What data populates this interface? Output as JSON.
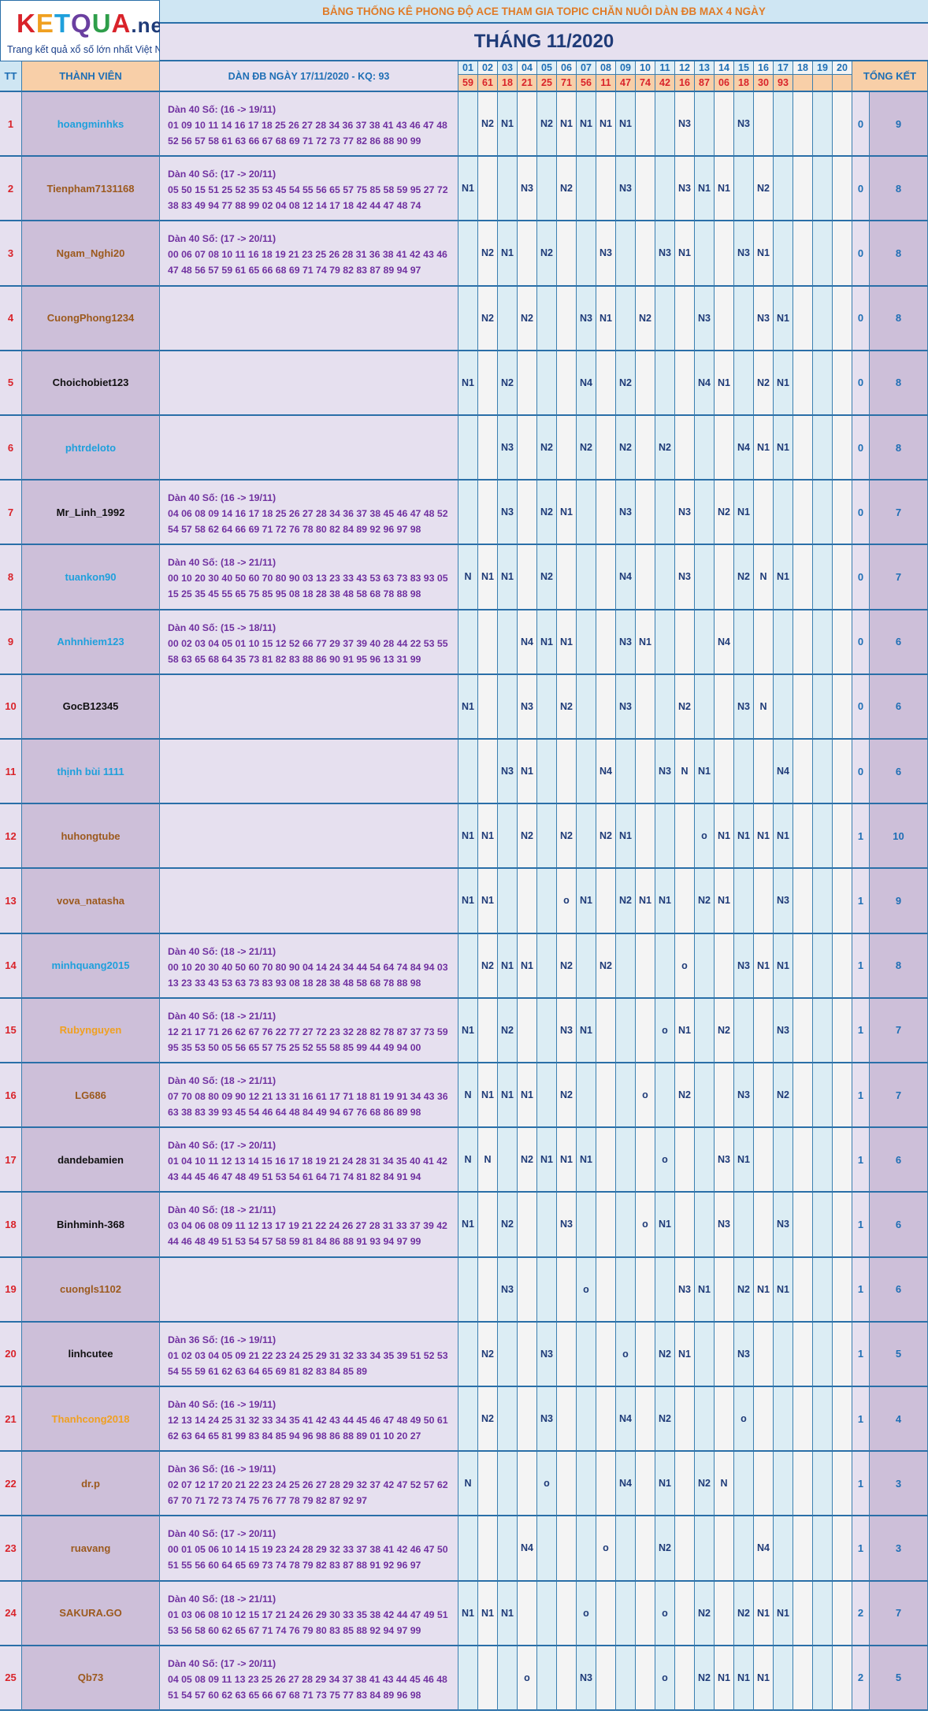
{
  "logo": {
    "brand_parts": [
      "K",
      "E",
      "T",
      "Q",
      "U",
      "A"
    ],
    "brand_suffix": ".net",
    "tagline": "Trang kết quả xổ số lớn nhất Việt Nam"
  },
  "title": "BẢNG THỐNG KÊ PHONG ĐỘ ACE THAM GIA TOPIC CHĂN NUÔI DÀN ĐB MAX 4 NGÀY",
  "month": "THÁNG 11/2020",
  "headers": {
    "tt": "TT",
    "member": "THÀNH VIÊN",
    "dan": "DÀN ĐB NGÀY 17/11/2020 - KQ: 93",
    "total": "TỔNG KẾT"
  },
  "days": [
    "01",
    "02",
    "03",
    "04",
    "05",
    "06",
    "07",
    "08",
    "09",
    "10",
    "11",
    "12",
    "13",
    "14",
    "15",
    "16",
    "17",
    "18",
    "19",
    "20"
  ],
  "results": [
    "59",
    "61",
    "18",
    "21",
    "25",
    "71",
    "56",
    "11",
    "47",
    "74",
    "42",
    "16",
    "87",
    "06",
    "18",
    "30",
    "93",
    "",
    "",
    ""
  ],
  "colors": {
    "header_blue": "#1f6fb5",
    "result_red": "#d9232a",
    "mark_navy": "#1f3b78",
    "dan_purple": "#7030a0",
    "border": "#2a6fa8"
  },
  "rows": [
    {
      "tt": "1",
      "name": "hoangminhks",
      "color": "#1fa0dc",
      "dan": [
        "Dàn 40 Số: (16 -> 19/11)",
        "01 09 10 11 14 16 17 18 25 26 27 28 34 36 37 38 41 43 46 47 48",
        "52 56 57 58 61 63 66 67 68 69 71 72 73 77 82 86 88 90 99"
      ],
      "marks": {
        "02": "N2",
        "03": "N1",
        "05": "N2",
        "06": "N1",
        "07": "N1",
        "08": "N1",
        "09": "N1",
        "12": "N3",
        "15": "N3"
      },
      "a": "0",
      "b": "9"
    },
    {
      "tt": "2",
      "name": "Tienpham7131168",
      "color": "#9c5a1e",
      "dan": [
        "Dàn 40 Số: (17 -> 20/11)",
        "05 50 15 51 25 52 35 53 45 54 55 56 65 57 75 85 58 59 95 27 72",
        "38 83 49 94 77 88 99 02 04 08 12 14 17 18 42 44 47 48 74"
      ],
      "marks": {
        "01": "N1",
        "04": "N3",
        "06": "N2",
        "09": "N3",
        "12": "N3",
        "13": "N1",
        "14": "N1",
        "16": "N2"
      },
      "a": "0",
      "b": "8"
    },
    {
      "tt": "3",
      "name": "Ngam_Nghi20",
      "color": "#9c5a1e",
      "dan": [
        "Dàn 40 Số: (17 -> 20/11)",
        "00 06 07 08 10 11 16 18 19 21 23 25 26 28 31 36 38 41 42 43 46",
        "47 48 56 57 59 61 65 66 68 69 71 74 79 82 83 87 89 94 97"
      ],
      "marks": {
        "02": "N2",
        "03": "N1",
        "05": "N2",
        "08": "N3",
        "11": "N3",
        "12": "N1",
        "15": "N3",
        "16": "N1"
      },
      "a": "0",
      "b": "8"
    },
    {
      "tt": "4",
      "name": "CuongPhong1234",
      "color": "#9c5a1e",
      "dan": [],
      "marks": {
        "02": "N2",
        "04": "N2",
        "07": "N3",
        "08": "N1",
        "10": "N2",
        "13": "N3",
        "16": "N3",
        "17": "N1"
      },
      "a": "0",
      "b": "8"
    },
    {
      "tt": "5",
      "name": "Choichobiet123",
      "color": "#111111",
      "dan": [],
      "marks": {
        "01": "N1",
        "03": "N2",
        "07": "N4",
        "09": "N2",
        "13": "N4",
        "14": "N1",
        "16": "N2",
        "17": "N1"
      },
      "a": "0",
      "b": "8"
    },
    {
      "tt": "6",
      "name": "phtrdeloto",
      "color": "#1fa0dc",
      "dan": [],
      "marks": {
        "03": "N3",
        "05": "N2",
        "07": "N2",
        "09": "N2",
        "11": "N2",
        "15": "N4",
        "16": "N1",
        "17": "N1"
      },
      "a": "0",
      "b": "8"
    },
    {
      "tt": "7",
      "name": "Mr_Linh_1992",
      "color": "#111111",
      "dan": [
        "Dàn 40 Số: (16 -> 19/11)",
        "04 06 08 09 14 16 17 18 25 26 27 28 34 36 37 38 45 46 47 48 52",
        "54 57 58 62 64 66 69 71 72 76 78 80 82 84 89 92 96 97 98"
      ],
      "marks": {
        "03": "N3",
        "05": "N2",
        "06": "N1",
        "09": "N3",
        "12": "N3",
        "14": "N2",
        "15": "N1"
      },
      "a": "0",
      "b": "7"
    },
    {
      "tt": "8",
      "name": "tuankon90",
      "color": "#1fa0dc",
      "dan": [
        "Dàn 40 Số: (18 -> 21/11)",
        "00 10 20 30 40 50 60 70 80 90 03 13 23 33 43 53 63 73 83 93 05",
        "15 25 35 45 55 65 75 85 95 08 18 28 38 48 58 68 78 88 98"
      ],
      "marks": {
        "01": "N",
        "02": "N1",
        "03": "N1",
        "05": "N2",
        "09": "N4",
        "12": "N3",
        "15": "N2",
        "16": "N",
        "17": "N1"
      },
      "a": "0",
      "b": "7"
    },
    {
      "tt": "9",
      "name": "Anhnhiem123",
      "color": "#1fa0dc",
      "dan": [
        "Dàn 40 Số: (15 -> 18/11)",
        "00 02 03 04 05 01 10 15 12 52 66 77 29 37 39 40 28 44 22 53 55",
        "58 63 65 68 64 35 73 81 82 83 88 86 90 91 95 96 13 31 99"
      ],
      "marks": {
        "04": "N4",
        "05": "N1",
        "06": "N1",
        "09": "N3",
        "10": "N1",
        "14": "N4"
      },
      "a": "0",
      "b": "6"
    },
    {
      "tt": "10",
      "name": "GocB12345",
      "color": "#111111",
      "dan": [],
      "marks": {
        "01": "N1",
        "04": "N3",
        "06": "N2",
        "09": "N3",
        "12": "N2",
        "15": "N3",
        "16": "N"
      },
      "a": "0",
      "b": "6"
    },
    {
      "tt": "11",
      "name": "thịnh bùi 1111",
      "color": "#1fa0dc",
      "dan": [],
      "marks": {
        "03": "N3",
        "04": "N1",
        "08": "N4",
        "11": "N3",
        "12": "N",
        "13": "N1",
        "17": "N4"
      },
      "a": "0",
      "b": "6"
    },
    {
      "tt": "12",
      "name": "huhongtube",
      "color": "#9c5a1e",
      "dan": [],
      "marks": {
        "01": "N1",
        "02": "N1",
        "04": "N2",
        "06": "N2",
        "08": "N2",
        "09": "N1",
        "13": "o",
        "14": "N1",
        "15": "N1",
        "16": "N1",
        "17": "N1"
      },
      "a": "1",
      "b": "10"
    },
    {
      "tt": "13",
      "name": "vova_natasha",
      "color": "#9c5a1e",
      "dan": [],
      "marks": {
        "01": "N1",
        "02": "N1",
        "06": "o",
        "07": "N1",
        "09": "N2",
        "10": "N1",
        "11": "N1",
        "13": "N2",
        "14": "N1",
        "17": "N3"
      },
      "a": "1",
      "b": "9"
    },
    {
      "tt": "14",
      "name": "minhquang2015",
      "color": "#1fa0dc",
      "dan": [
        "Dàn 40 Số: (18 -> 21/11)",
        "00 10 20 30 40 50 60 70 80 90 04 14 24 34 44 54 64 74 84 94 03",
        "13 23 33 43 53 63 73 83 93 08 18 28 38 48 58 68 78 88 98"
      ],
      "marks": {
        "02": "N2",
        "03": "N1",
        "04": "N1",
        "06": "N2",
        "08": "N2",
        "12": "o",
        "15": "N3",
        "16": "N1",
        "17": "N1"
      },
      "a": "1",
      "b": "8"
    },
    {
      "tt": "15",
      "name": "Rubynguyen",
      "color": "#f0a020",
      "dan": [
        "Dàn 40 Số: (18 -> 21/11)",
        "12 21 17 71 26 62 67 76 22 77 27 72 23 32 28 82 78 87 37 73 59",
        "95 35 53 50 05 56 65 57 75 25 52 55 58 85 99 44 49 94 00"
      ],
      "marks": {
        "01": "N1",
        "03": "N2",
        "06": "N3",
        "07": "N1",
        "11": "o",
        "12": "N1",
        "14": "N2",
        "17": "N3"
      },
      "a": "1",
      "b": "7"
    },
    {
      "tt": "16",
      "name": "LG686",
      "color": "#9c5a1e",
      "dan": [
        "Dàn 40 Số: (18 -> 21/11)",
        "07 70 08 80 09 90 12 21 13 31 16 61 17 71 18 81 19 91 34 43 36",
        "63 38 83 39 93 45 54 46 64 48 84 49 94 67 76 68 86 89 98"
      ],
      "marks": {
        "01": "N",
        "02": "N1",
        "03": "N1",
        "04": "N1",
        "06": "N2",
        "10": "o",
        "12": "N2",
        "15": "N3",
        "17": "N2"
      },
      "a": "1",
      "b": "7"
    },
    {
      "tt": "17",
      "name": "dandebamien",
      "color": "#111111",
      "dan": [
        "Dàn 40 Số: (17 -> 20/11)",
        "01 04 10 11 12 13 14 15 16 17 18 19 21 24 28 31 34 35 40 41 42",
        "43 44 45 46 47 48 49 51 53 54 61 64 71 74 81 82 84 91 94"
      ],
      "marks": {
        "01": "N",
        "02": "N",
        "04": "N2",
        "05": "N1",
        "06": "N1",
        "07": "N1",
        "11": "o",
        "14": "N3",
        "15": "N1"
      },
      "a": "1",
      "b": "6"
    },
    {
      "tt": "18",
      "name": "Binhminh-368",
      "color": "#111111",
      "dan": [
        "Dàn 40 Số: (18 -> 21/11)",
        "03 04 06 08 09 11 12 13 17 19 21 22 24 26 27 28 31 33 37 39 42",
        "44 46 48 49 51 53 54 57 58 59 81 84 86 88 91 93 94 97 99"
      ],
      "marks": {
        "01": "N1",
        "03": "N2",
        "06": "N3",
        "10": "o",
        "11": "N1",
        "14": "N3",
        "17": "N3"
      },
      "a": "1",
      "b": "6"
    },
    {
      "tt": "19",
      "name": "cuongls1102",
      "color": "#9c5a1e",
      "dan": [],
      "marks": {
        "03": "N3",
        "07": "o",
        "12": "N3",
        "13": "N1",
        "15": "N2",
        "16": "N1",
        "17": "N1"
      },
      "a": "1",
      "b": "6"
    },
    {
      "tt": "20",
      "name": "linhcutee",
      "color": "#111111",
      "dan": [
        "Dàn 36 Số: (16 -> 19/11)",
        "01 02 03 04 05 09 21 22 23 24 25 29 31 32 33 34 35 39 51 52 53",
        "54 55 59 61 62 63 64 65 69 81 82 83 84 85 89"
      ],
      "marks": {
        "02": "N2",
        "05": "N3",
        "09": "o",
        "11": "N2",
        "12": "N1",
        "15": "N3"
      },
      "a": "1",
      "b": "5"
    },
    {
      "tt": "21",
      "name": "Thanhcong2018",
      "color": "#f0a020",
      "dan": [
        "Dàn 40 Số: (16 -> 19/11)",
        "12 13 14 24 25 31 32 33 34 35 41 42 43 44 45 46 47 48 49 50 61",
        "62 63 64 65 81 99 83 84 85 94 96 98 86 88 89 01 10 20 27"
      ],
      "marks": {
        "02": "N2",
        "05": "N3",
        "09": "N4",
        "11": "N2",
        "15": "o"
      },
      "a": "1",
      "b": "4"
    },
    {
      "tt": "22",
      "name": "dr.p",
      "color": "#9c5a1e",
      "dan": [
        "Dàn 36 Số: (16 -> 19/11)",
        "02 07 12 17 20 21 22 23 24 25 26 27 28 29 32 37 42 47 52 57 62",
        "67 70 71 72 73 74 75 76 77 78 79 82 87 92 97"
      ],
      "marks": {
        "01": "N",
        "05": "o",
        "09": "N4",
        "11": "N1",
        "13": "N2",
        "14": "N"
      },
      "a": "1",
      "b": "3"
    },
    {
      "tt": "23",
      "name": "ruavang",
      "color": "#9c5a1e",
      "dan": [
        "Dàn 40 Số: (17 -> 20/11)",
        "00 01 05 06 10 14 15 19 23 24 28 29 32 33 37 38 41 42 46 47 50",
        "51 55 56 60 64 65 69 73 74 78 79 82 83 87 88 91 92 96 97"
      ],
      "marks": {
        "04": "N4",
        "08": "o",
        "11": "N2",
        "16": "N4"
      },
      "a": "1",
      "b": "3"
    },
    {
      "tt": "24",
      "name": "SAKURA.GO",
      "color": "#9c5a1e",
      "dan": [
        "Dàn 40 Số: (18 -> 21/11)",
        "01 03 06 08 10 12 15 17 21 24 26 29 30 33 35 38 42 44 47 49 51",
        "53 56 58 60 62 65 67 71 74 76 79 80 83 85 88 92 94 97 99"
      ],
      "marks": {
        "01": "N1",
        "02": "N1",
        "03": "N1",
        "07": "o",
        "11": "o",
        "13": "N2",
        "15": "N2",
        "16": "N1",
        "17": "N1"
      },
      "a": "2",
      "b": "7"
    },
    {
      "tt": "25",
      "name": "Qb73",
      "color": "#9c5a1e",
      "dan": [
        "Dàn 40 Số: (17 -> 20/11)",
        "04 05 08 09 11 13 23 25 26 27 28 29 34 37 38 41 43 44 45 46 48",
        "51 54 57 60 62 63 65 66 67 68 71 73 75 77 83 84 89 96 98"
      ],
      "marks": {
        "04": "o",
        "07": "N3",
        "11": "o",
        "13": "N2",
        "14": "N1",
        "15": "N1",
        "16": "N1"
      },
      "a": "2",
      "b": "5"
    }
  ]
}
